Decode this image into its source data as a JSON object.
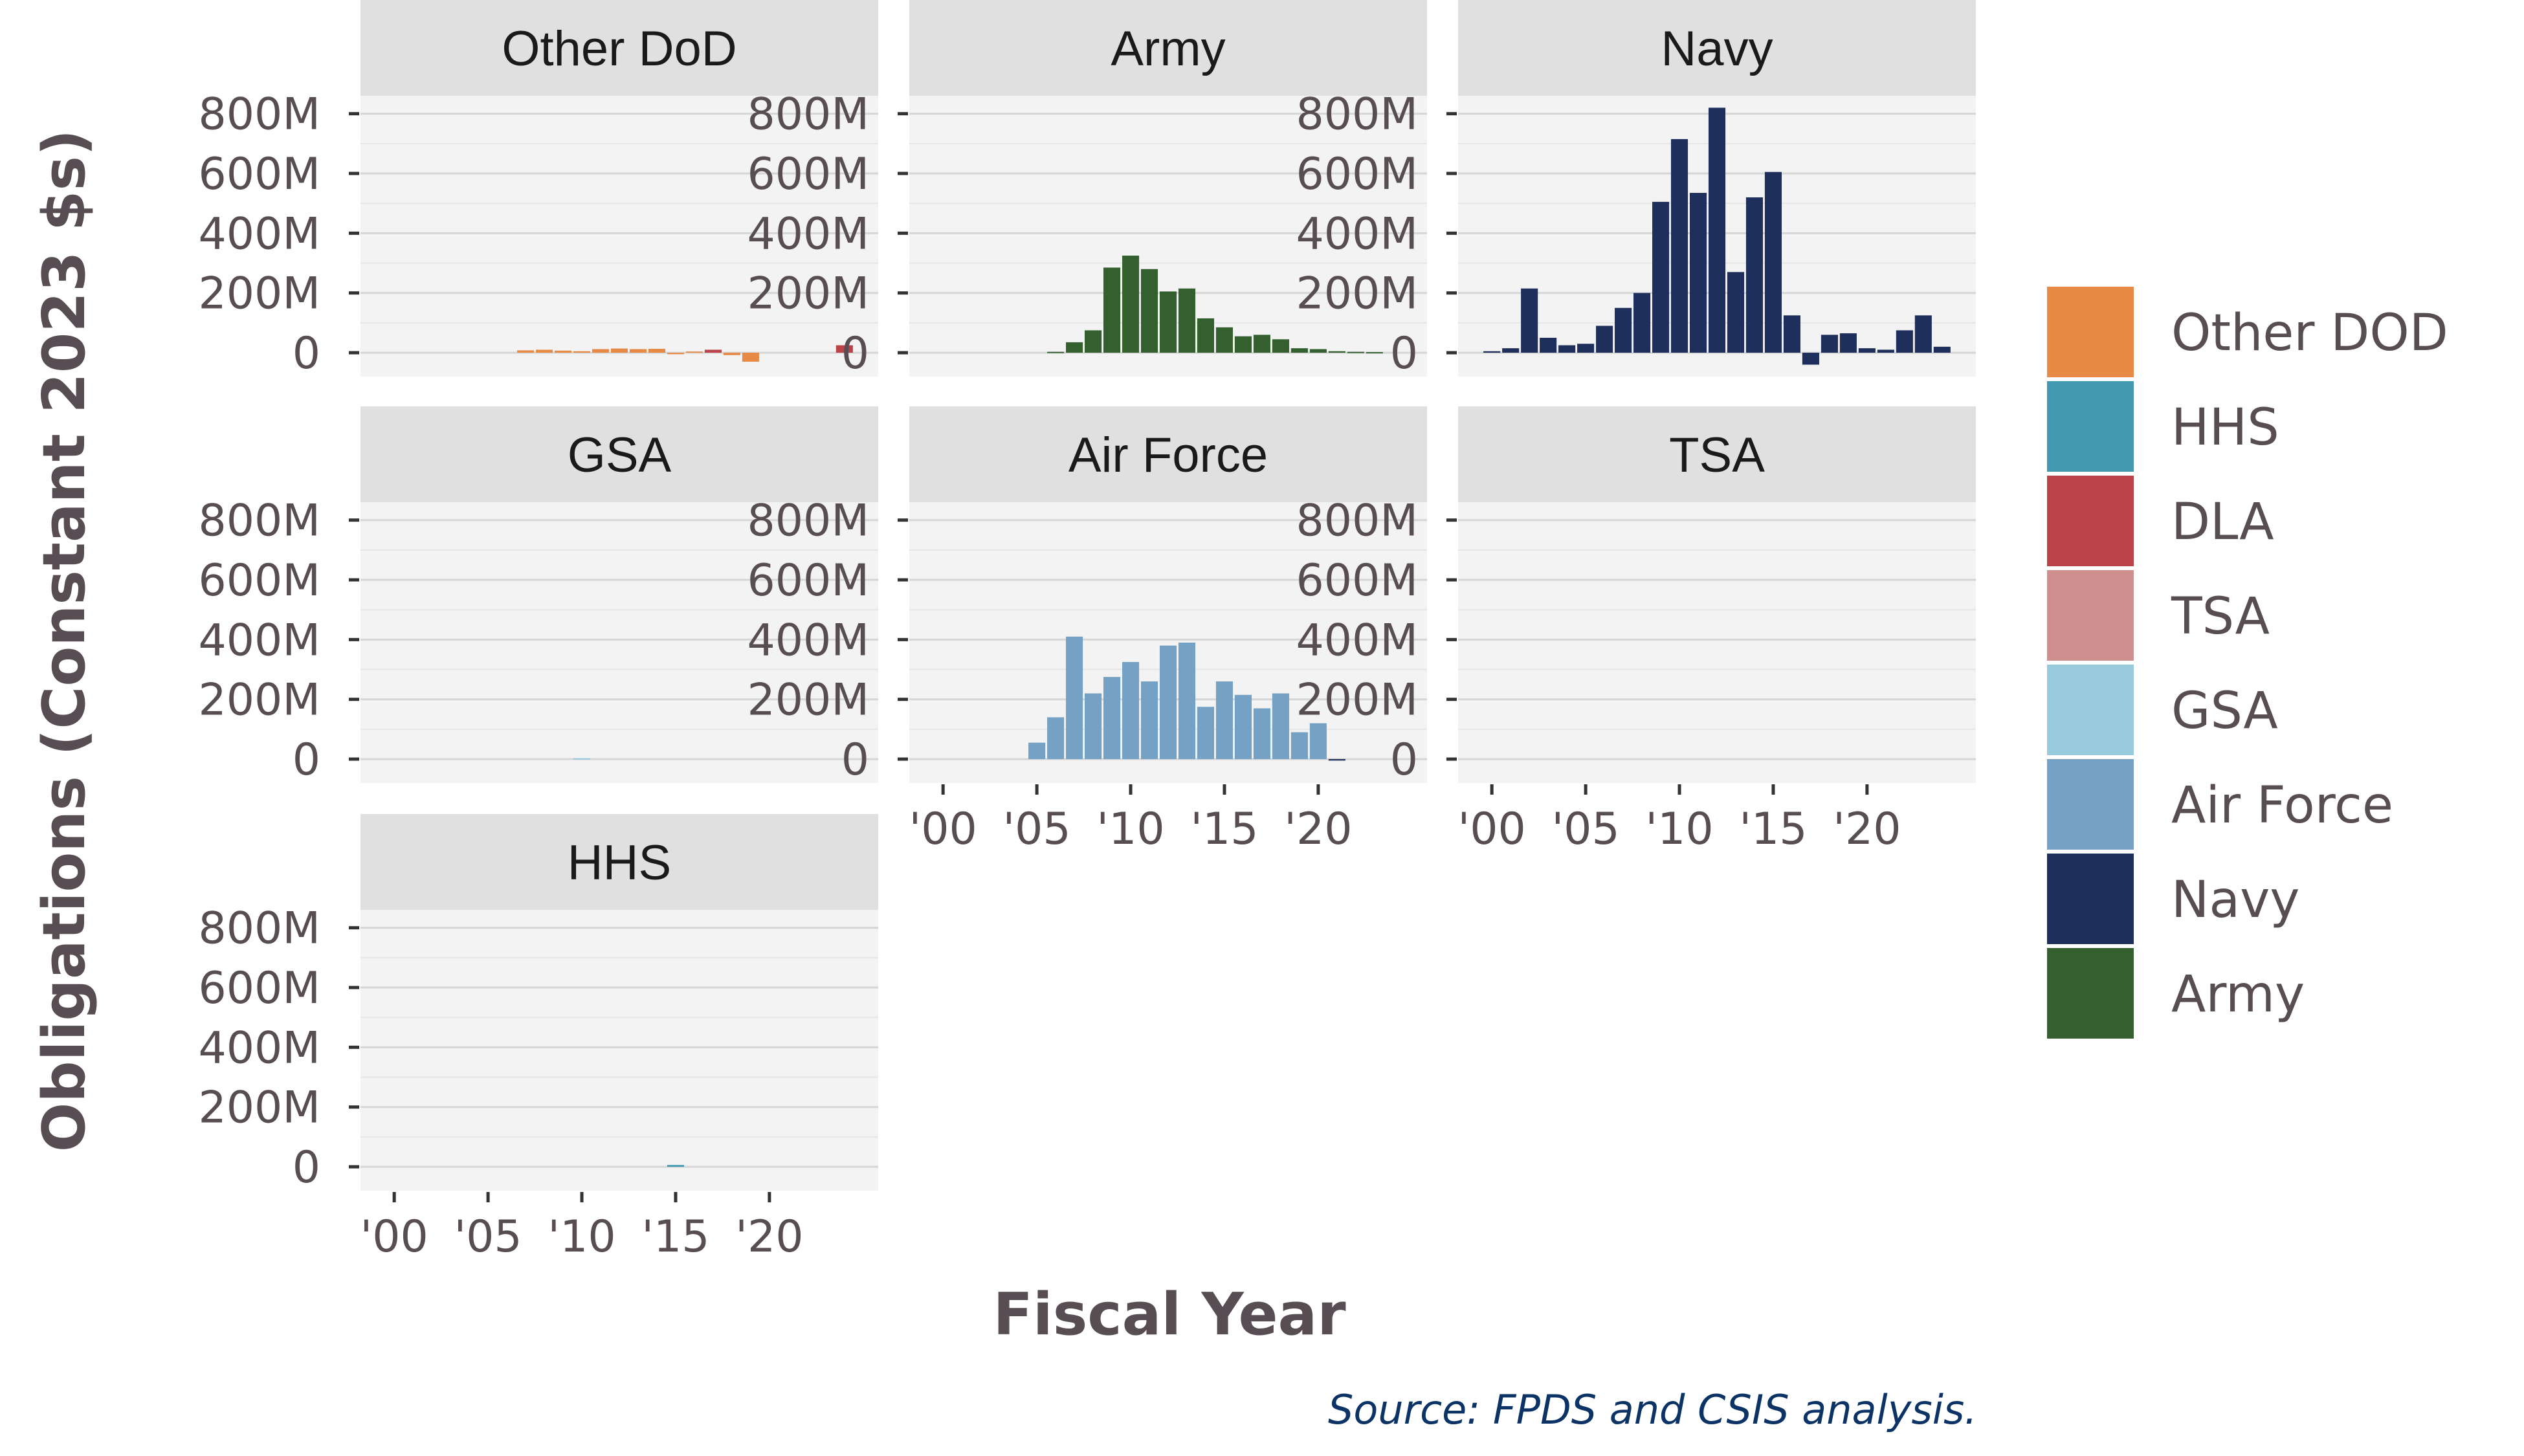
{
  "chart_data": {
    "type": "bar",
    "layout": "faceted small multiples",
    "xlabel": "Fiscal Year",
    "ylabel": "Obligations (Constant 2023 $s)",
    "caption": "Source: FPDS and CSIS analysis.",
    "ylim": [
      -80000000,
      860000000
    ],
    "xlim": [
      1998.2,
      2025.8
    ],
    "y_ticks": [
      {
        "value": 0,
        "label": "0"
      },
      {
        "value": 200000000,
        "label": "200M"
      },
      {
        "value": 400000000,
        "label": "400M"
      },
      {
        "value": 600000000,
        "label": "600M"
      },
      {
        "value": 800000000,
        "label": "800M"
      }
    ],
    "x_ticks": [
      {
        "value": 2000,
        "label": "'00"
      },
      {
        "value": 2005,
        "label": "'05"
      },
      {
        "value": 2010,
        "label": "'10"
      },
      {
        "value": 2015,
        "label": "'15"
      },
      {
        "value": 2020,
        "label": "'20"
      }
    ],
    "legend": {
      "position": "right",
      "entries": [
        {
          "name": "Other DOD",
          "color": "#e68a45"
        },
        {
          "name": "HHS",
          "color": "#4399b0"
        },
        {
          "name": "DLA",
          "color": "#b94346"
        },
        {
          "name": "TSA",
          "color": "#d08f8f"
        },
        {
          "name": "GSA",
          "color": "#96cadc"
        },
        {
          "name": "Air Force",
          "color": "#75a2c4"
        },
        {
          "name": "Navy",
          "color": "#1f2f5c"
        },
        {
          "name": "Army",
          "color": "#33602e"
        }
      ]
    },
    "facets": [
      {
        "title": "Other DoD",
        "bars": [
          {
            "year": 2007,
            "value": 8000000,
            "color": "#e68a45"
          },
          {
            "year": 2008,
            "value": 10000000,
            "color": "#e68a45"
          },
          {
            "year": 2009,
            "value": 7000000,
            "color": "#e68a45"
          },
          {
            "year": 2010,
            "value": 5000000,
            "color": "#e68a45"
          },
          {
            "year": 2011,
            "value": 12000000,
            "color": "#e68a45"
          },
          {
            "year": 2012,
            "value": 14000000,
            "color": "#e68a45"
          },
          {
            "year": 2013,
            "value": 12000000,
            "color": "#e68a45"
          },
          {
            "year": 2014,
            "value": 13000000,
            "color": "#e68a45"
          },
          {
            "year": 2015,
            "value": -5000000,
            "color": "#e68a45"
          },
          {
            "year": 2016,
            "value": 4000000,
            "color": "#e68a45"
          },
          {
            "year": 2017,
            "value": 10000000,
            "color": "#b94346"
          },
          {
            "year": 2018,
            "value": -8000000,
            "color": "#e68a45"
          },
          {
            "year": 2019,
            "value": -30000000,
            "color": "#e68a45"
          },
          {
            "year": 2024,
            "value": 25000000,
            "color": "#b94346"
          }
        ]
      },
      {
        "title": "Army",
        "bars": [
          {
            "year": 2006,
            "value": 3000000,
            "color": "#33602e"
          },
          {
            "year": 2007,
            "value": 35000000,
            "color": "#33602e"
          },
          {
            "year": 2008,
            "value": 75000000,
            "color": "#33602e"
          },
          {
            "year": 2009,
            "value": 285000000,
            "color": "#33602e"
          },
          {
            "year": 2010,
            "value": 325000000,
            "color": "#33602e"
          },
          {
            "year": 2011,
            "value": 280000000,
            "color": "#33602e"
          },
          {
            "year": 2012,
            "value": 205000000,
            "color": "#33602e"
          },
          {
            "year": 2013,
            "value": 215000000,
            "color": "#33602e"
          },
          {
            "year": 2014,
            "value": 115000000,
            "color": "#33602e"
          },
          {
            "year": 2015,
            "value": 85000000,
            "color": "#33602e"
          },
          {
            "year": 2016,
            "value": 55000000,
            "color": "#33602e"
          },
          {
            "year": 2017,
            "value": 60000000,
            "color": "#33602e"
          },
          {
            "year": 2018,
            "value": 45000000,
            "color": "#33602e"
          },
          {
            "year": 2019,
            "value": 15000000,
            "color": "#33602e"
          },
          {
            "year": 2020,
            "value": 12000000,
            "color": "#33602e"
          },
          {
            "year": 2021,
            "value": 5000000,
            "color": "#33602e"
          },
          {
            "year": 2022,
            "value": 3000000,
            "color": "#33602e"
          },
          {
            "year": 2023,
            "value": 2000000,
            "color": "#33602e"
          }
        ]
      },
      {
        "title": "Navy",
        "bars": [
          {
            "year": 2000,
            "value": 5000000,
            "color": "#1f2f5c"
          },
          {
            "year": 2001,
            "value": 15000000,
            "color": "#1f2f5c"
          },
          {
            "year": 2002,
            "value": 215000000,
            "color": "#1f2f5c"
          },
          {
            "year": 2003,
            "value": 50000000,
            "color": "#1f2f5c"
          },
          {
            "year": 2004,
            "value": 25000000,
            "color": "#1f2f5c"
          },
          {
            "year": 2005,
            "value": 30000000,
            "color": "#1f2f5c"
          },
          {
            "year": 2006,
            "value": 90000000,
            "color": "#1f2f5c"
          },
          {
            "year": 2007,
            "value": 150000000,
            "color": "#1f2f5c"
          },
          {
            "year": 2008,
            "value": 200000000,
            "color": "#1f2f5c"
          },
          {
            "year": 2009,
            "value": 505000000,
            "color": "#1f2f5c"
          },
          {
            "year": 2010,
            "value": 715000000,
            "color": "#1f2f5c"
          },
          {
            "year": 2011,
            "value": 535000000,
            "color": "#1f2f5c"
          },
          {
            "year": 2012,
            "value": 820000000,
            "color": "#1f2f5c"
          },
          {
            "year": 2013,
            "value": 270000000,
            "color": "#1f2f5c"
          },
          {
            "year": 2014,
            "value": 520000000,
            "color": "#1f2f5c"
          },
          {
            "year": 2015,
            "value": 605000000,
            "color": "#1f2f5c"
          },
          {
            "year": 2016,
            "value": 125000000,
            "color": "#1f2f5c"
          },
          {
            "year": 2017,
            "value": -40000000,
            "color": "#1f2f5c"
          },
          {
            "year": 2018,
            "value": 60000000,
            "color": "#1f2f5c"
          },
          {
            "year": 2019,
            "value": 65000000,
            "color": "#1f2f5c"
          },
          {
            "year": 2020,
            "value": 15000000,
            "color": "#1f2f5c"
          },
          {
            "year": 2021,
            "value": 10000000,
            "color": "#1f2f5c"
          },
          {
            "year": 2022,
            "value": 75000000,
            "color": "#1f2f5c"
          },
          {
            "year": 2023,
            "value": 125000000,
            "color": "#1f2f5c"
          },
          {
            "year": 2024,
            "value": 20000000,
            "color": "#1f2f5c"
          }
        ]
      },
      {
        "title": "GSA",
        "bars": [
          {
            "year": 2010,
            "value": 3000000,
            "color": "#96cadc"
          }
        ]
      },
      {
        "title": "Air Force",
        "bars": [
          {
            "year": 2005,
            "value": 55000000,
            "color": "#75a2c4"
          },
          {
            "year": 2006,
            "value": 140000000,
            "color": "#75a2c4"
          },
          {
            "year": 2007,
            "value": 410000000,
            "color": "#75a2c4"
          },
          {
            "year": 2008,
            "value": 220000000,
            "color": "#75a2c4"
          },
          {
            "year": 2009,
            "value": 275000000,
            "color": "#75a2c4"
          },
          {
            "year": 2010,
            "value": 325000000,
            "color": "#75a2c4"
          },
          {
            "year": 2011,
            "value": 260000000,
            "color": "#75a2c4"
          },
          {
            "year": 2012,
            "value": 380000000,
            "color": "#75a2c4"
          },
          {
            "year": 2013,
            "value": 390000000,
            "color": "#75a2c4"
          },
          {
            "year": 2014,
            "value": 175000000,
            "color": "#75a2c4"
          },
          {
            "year": 2015,
            "value": 260000000,
            "color": "#75a2c4"
          },
          {
            "year": 2016,
            "value": 215000000,
            "color": "#75a2c4"
          },
          {
            "year": 2017,
            "value": 170000000,
            "color": "#75a2c4"
          },
          {
            "year": 2018,
            "value": 220000000,
            "color": "#75a2c4"
          },
          {
            "year": 2019,
            "value": 90000000,
            "color": "#75a2c4"
          },
          {
            "year": 2020,
            "value": 120000000,
            "color": "#75a2c4"
          },
          {
            "year": 2021,
            "value": -5000000,
            "color": "#1f2f5c"
          }
        ]
      },
      {
        "title": "TSA",
        "bars": []
      },
      {
        "title": "HHS",
        "bars": [
          {
            "year": 2015,
            "value": 6000000,
            "color": "#4399b0"
          }
        ]
      }
    ]
  }
}
